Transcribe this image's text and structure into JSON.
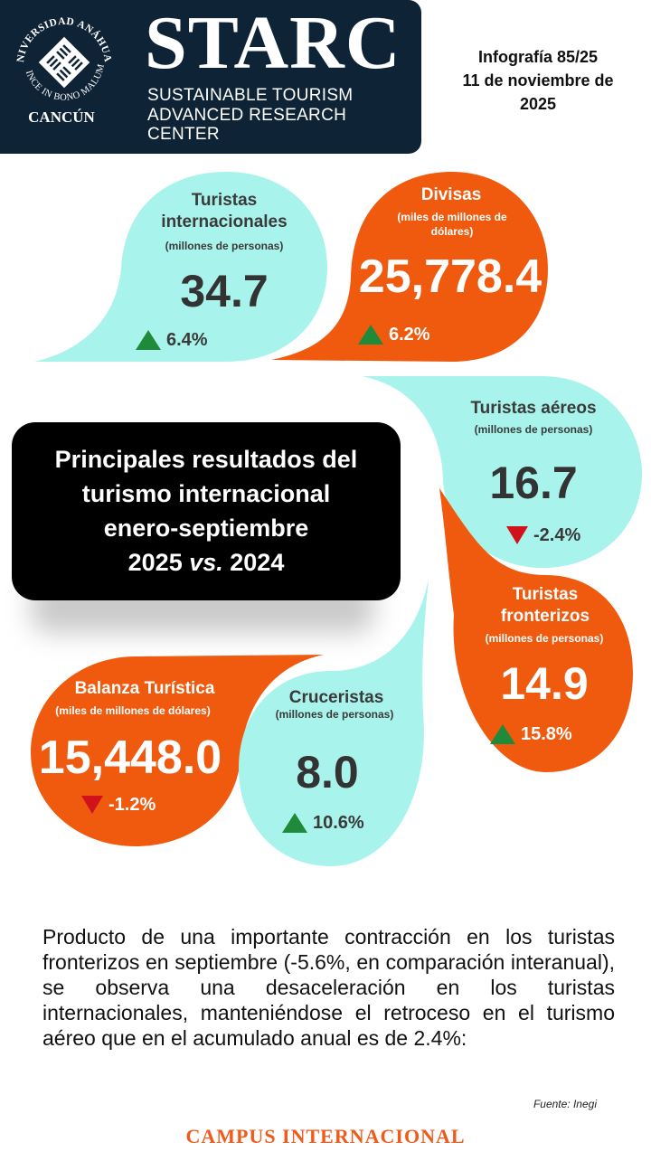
{
  "header": {
    "seal_text_top": "UNIVERSIDAD ANÁHUAC",
    "seal_text_bottom": "VINCE IN BONO MALUM",
    "campus_city": "CANCÚN",
    "brand": "STARC",
    "brand_sub_line1": "SUSTAINABLE TOURISM",
    "brand_sub_line2": "ADVANCED RESEARCH CENTER"
  },
  "issue": {
    "line1": "Infografía 85/25",
    "line2": "11 de noviembre de",
    "line3": "2025"
  },
  "title": {
    "line1": "Principales resultados del",
    "line2": "turismo internacional",
    "line3": "enero-septiembre",
    "line4a": "2025 ",
    "line4b": "vs.",
    "line4c": " 2024"
  },
  "metrics": {
    "intl": {
      "title1": "Turistas",
      "title2": "internacionales",
      "unit": "(millones de personas)",
      "value": "34.7",
      "change": "6.4%",
      "direction": "up"
    },
    "divisas": {
      "title": "Divisas",
      "unit1": "(miles de millones de",
      "unit2": "dólares)",
      "value": "25,778.4",
      "change": "6.2%",
      "direction": "up"
    },
    "aereos": {
      "title": "Turistas aéreos",
      "unit": "(millones de personas)",
      "value": "16.7",
      "change": "-2.4%",
      "direction": "down"
    },
    "fronterizos": {
      "title1": "Turistas",
      "title2": "fronterizos",
      "unit": "(millones de personas)",
      "value": "14.9",
      "change": "15.8%",
      "direction": "up"
    },
    "balanza": {
      "title": "Balanza Turística",
      "unit": "(miles de millones de dólares)",
      "value": "15,448.0",
      "change": "-1.2%",
      "direction": "down"
    },
    "cruceristas": {
      "title": "Cruceristas",
      "unit": "(millones de personas)",
      "value": "8.0",
      "change": "10.6%",
      "direction": "up"
    }
  },
  "paragraph": "Producto de una importante contracción en los turistas fronterizos en septiembre (-5.6%, en comparación interanual), se observa una desaceleración en los turistas internacionales, manteniéndose el retroceso en el turismo aéreo que en el acumulado anual es de 2.4%:",
  "source": "Fuente: Inegi",
  "footer": "CAMPUS INTERNACIONAL",
  "colors": {
    "navy": "#0f2336",
    "orange": "#f05a0f",
    "aqua": "#a8f4ec",
    "up": "#1f8a3a",
    "down": "#d0121b"
  }
}
